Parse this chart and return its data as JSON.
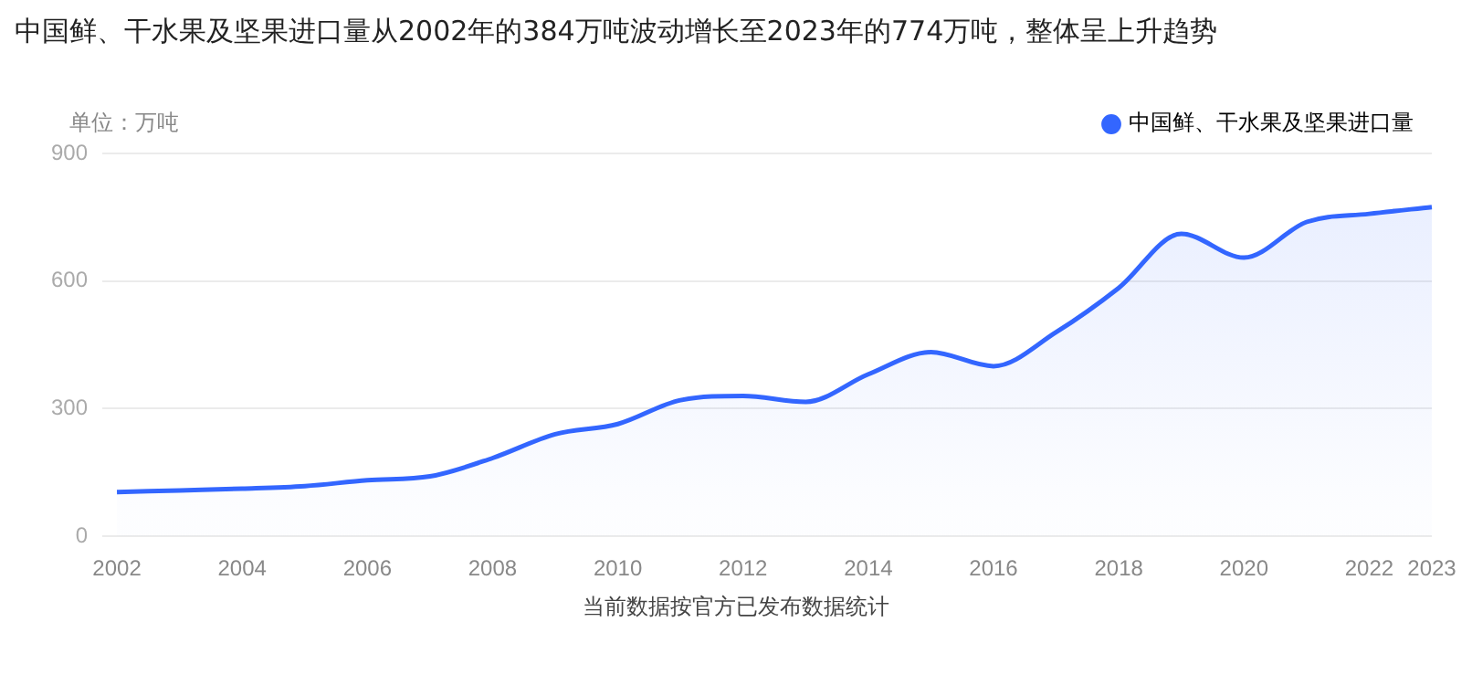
{
  "chart_data": {
    "type": "area",
    "title": "中国鲜、干水果及坚果进口量从2002年的384万吨波动增长至2023年的774万吨，整体呈上升趋势",
    "ylabel": "单位：万吨",
    "categories": [
      "2002",
      null,
      "2004",
      null,
      "2006",
      null,
      "2008",
      null,
      "2010",
      null,
      "2012",
      null,
      "2014",
      null,
      "2016",
      null,
      "2018",
      null,
      "2020",
      null,
      "2022",
      "2023"
    ],
    "series": [
      {
        "name": "中国鲜、干水果及坚果进口量",
        "color": "#3366ff",
        "values": [
          104,
          108,
          112,
          118,
          132,
          141,
          184,
          240,
          264,
          320,
          330,
          316,
          381,
          433,
          400,
          480,
          584,
          711,
          655,
          739,
          758,
          774
        ]
      }
    ],
    "ylim": [
      0,
      900
    ],
    "yticks": [
      0,
      300,
      600,
      900
    ],
    "grid": "y",
    "legend": "top right",
    "annotations": [
      "当前数据按官方已发布数据统计"
    ]
  }
}
